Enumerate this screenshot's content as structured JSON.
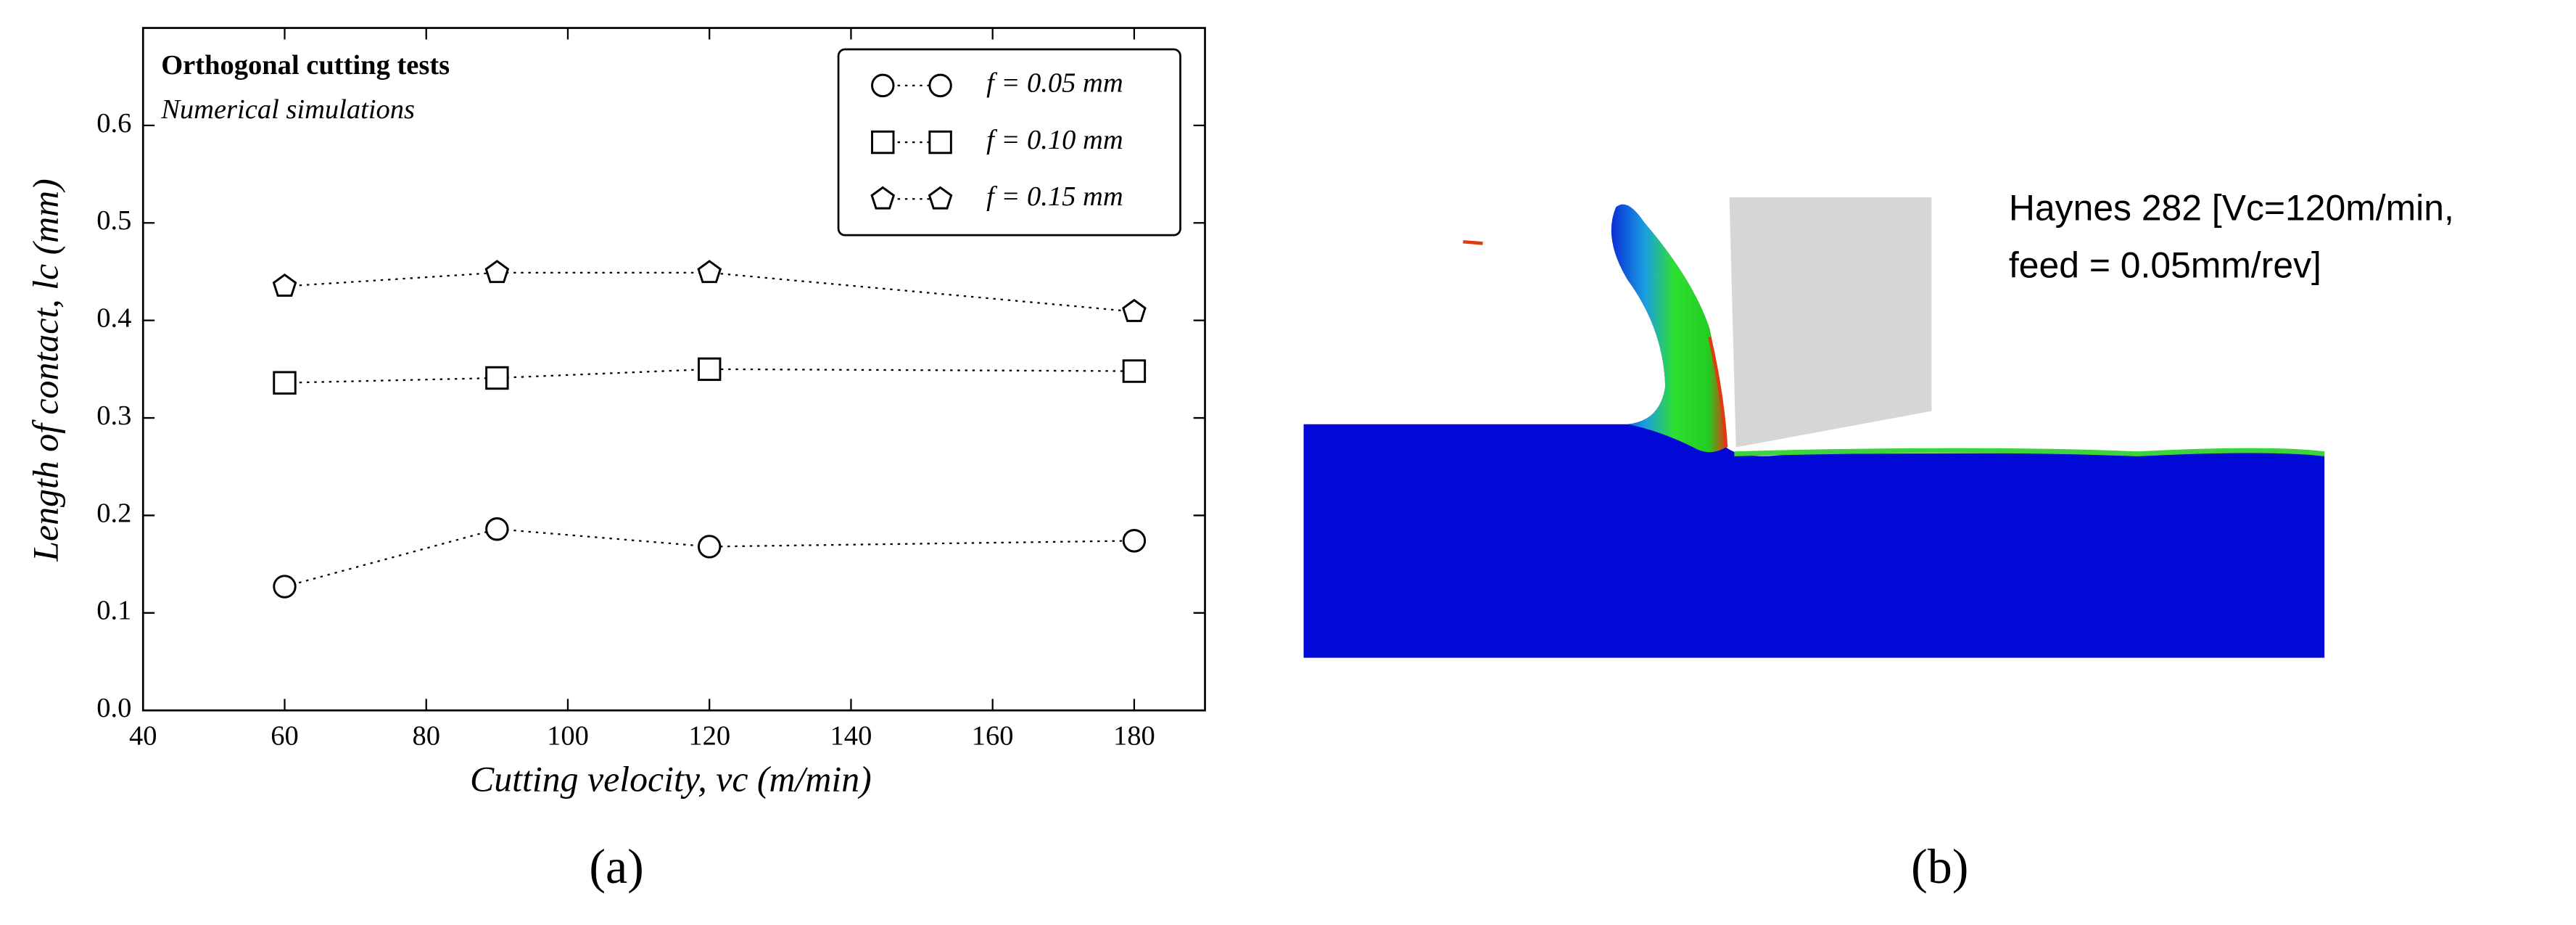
{
  "chart_data": {
    "type": "line",
    "title": "Orthogonal cutting tests",
    "subtitle": "Numerical simulations",
    "x_label": "Cutting velocity, vc (m/min)",
    "y_label": "Length of contact, lc (mm)",
    "x": [
      60,
      90,
      120,
      180
    ],
    "series": [
      {
        "name": "f = 0.05 mm",
        "color": "#000000",
        "marker": "circle",
        "values": [
          0.127,
          0.186,
          0.168,
          0.174
        ]
      },
      {
        "name": "f = 0.10 mm",
        "color": "#000000",
        "marker": "square",
        "values": [
          0.336,
          0.341,
          0.35,
          0.348
        ]
      },
      {
        "name": "f = 0.15 mm",
        "color": "#000000",
        "marker": "pentagon",
        "values": [
          0.435,
          0.449,
          0.449,
          0.409
        ]
      }
    ],
    "linestyle": "dotted",
    "xlim": [
      40,
      190
    ],
    "xticks": [
      40,
      60,
      80,
      100,
      120,
      140,
      160,
      180
    ],
    "ylim": [
      0,
      0.7
    ],
    "yticks": [
      {
        "value": 0,
        "label": "0.0"
      },
      0.1,
      0.2,
      0.3,
      0.4,
      0.5,
      0.6
    ],
    "grid": false,
    "legend": "upper right"
  },
  "panel_labels": [
    "(a)",
    "(b)"
  ],
  "simulation": {
    "label_lines": [
      "Haynes 282 [Vc=120m/min,",
      "feed = 0.05mm/rev]"
    ]
  }
}
